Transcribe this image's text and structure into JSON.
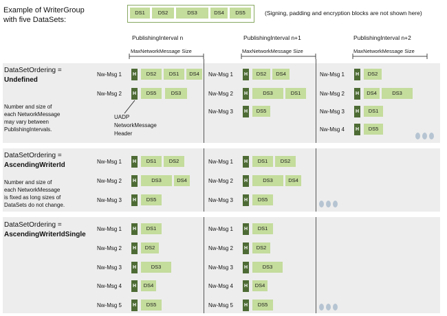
{
  "header": {
    "example_line1": "Example of WriterGroup",
    "example_line2": "with five DataSets:",
    "datasets": [
      "DS1",
      "DS2",
      "DS3",
      "DS4",
      "DS5"
    ],
    "note": "(Signing, padding and encryption blocks are not shown here)"
  },
  "intervals": [
    {
      "label": "PublishingInterval n",
      "maxsize": "MaxNetworkMessage Size"
    },
    {
      "label": "PublishingInterval n+1",
      "maxsize": "MaxNetworkMessage Size"
    },
    {
      "label": "PublishingInterval n+2",
      "maxsize": "MaxNetworkMessage Size"
    }
  ],
  "header_block_label": "H",
  "uadp_label": [
    "UADP",
    "NetworkMessage",
    "Header"
  ],
  "sections": [
    {
      "ordering_label": "DataSetOrdering =",
      "ordering_value": "Undefined",
      "description": [
        "Number and size of",
        "each NetworkMessage",
        "may vary between",
        "PublishingIntervals."
      ]
    },
    {
      "ordering_label": "DataSetOrdering =",
      "ordering_value": "AscendingWriterId",
      "description": [
        "Number and size of",
        "each NetworkMessage",
        "is fixed as long sizes of",
        "DataSets do not change."
      ]
    },
    {
      "ordering_label": "DataSetOrdering =",
      "ordering_value": "AscendingWriterIdSingle",
      "description": []
    }
  ],
  "messages": [
    {
      "label": "Nw-Msg 1",
      "ds": [
        "DS2",
        "DS1",
        "DS4"
      ]
    },
    {
      "label": "Nw-Msg 2",
      "ds": [
        "DS5",
        "DS3"
      ]
    },
    {
      "label": "Nw-Msg 1",
      "ds": [
        "DS2",
        "DS4"
      ]
    },
    {
      "label": "Nw-Msg 2",
      "ds": [
        "DS3",
        "DS1"
      ]
    },
    {
      "label": "Nw-Msg 3",
      "ds": [
        "DS5"
      ]
    },
    {
      "label": "Nw-Msg 1",
      "ds": [
        "DS2"
      ]
    },
    {
      "label": "Nw-Msg 2",
      "ds": [
        "DS4",
        "DS3"
      ]
    },
    {
      "label": "Nw-Msg 3",
      "ds": [
        "DS1"
      ]
    },
    {
      "label": "Nw-Msg 4",
      "ds": [
        "DS5"
      ]
    },
    {
      "label": "Nw-Msg 1",
      "ds": [
        "DS1",
        "DS2"
      ]
    },
    {
      "label": "Nw-Msg 2",
      "ds": [
        "DS3",
        "DS4"
      ]
    },
    {
      "label": "Nw-Msg 3",
      "ds": [
        "DS5"
      ]
    },
    {
      "label": "Nw-Msg 1",
      "ds": [
        "DS1",
        "DS2"
      ]
    },
    {
      "label": "Nw-Msg 2",
      "ds": [
        "DS3",
        "DS4"
      ]
    },
    {
      "label": "Nw-Msg 3",
      "ds": [
        "DS5"
      ]
    },
    {
      "label": "Nw-Msg 1",
      "ds": [
        "DS1"
      ]
    },
    {
      "label": "Nw-Msg 2",
      "ds": [
        "DS2"
      ]
    },
    {
      "label": "Nw-Msg 3",
      "ds": [
        "DS3"
      ]
    },
    {
      "label": "Nw-Msg 4",
      "ds": [
        "DS4"
      ]
    },
    {
      "label": "Nw-Msg 5",
      "ds": [
        "DS5"
      ]
    },
    {
      "label": "Nw-Msg 1",
      "ds": [
        "DS1"
      ]
    },
    {
      "label": "Nw-Msg 2",
      "ds": [
        "DS2"
      ]
    },
    {
      "label": "Nw-Msg 3",
      "ds": [
        "DS3"
      ]
    },
    {
      "label": "Nw-Msg 4",
      "ds": [
        "DS4"
      ]
    },
    {
      "label": "Nw-Msg 5",
      "ds": [
        "DS5"
      ]
    }
  ]
}
